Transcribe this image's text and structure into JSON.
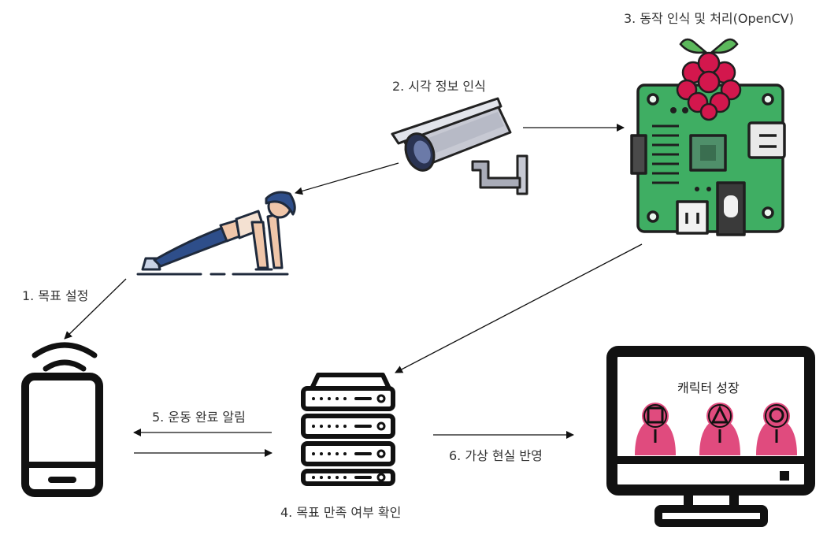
{
  "labels": {
    "step1": "1. 목표 설정",
    "step2": "2. 시각 정보 인식",
    "step3": "3. 동작 인식 및 처리(OpenCV)",
    "step4": "4. 목표 만족 여부 확인",
    "step5": "5. 운동 완료 알림",
    "step6": "6. 가상 현실 반영",
    "monitor_caption": "캐릭터 성장"
  },
  "icons": {
    "person": "pushup-person-icon",
    "camera": "cctv-camera-icon",
    "board": "raspberry-pi-board-icon",
    "phone": "smartphone-wifi-icon",
    "server": "server-rack-icon",
    "monitor": "monitor-icon",
    "characters": [
      "square-guard-icon",
      "triangle-guard-icon",
      "circle-guard-icon"
    ]
  },
  "colors": {
    "text": "#333333",
    "arrow": "#111111",
    "pcb_green": "#3fae63",
    "raspberry_red": "#d3174d",
    "leaf_green": "#5cb85c",
    "guard_pink": "#e04b7e",
    "pants_blue": "#2e4e8a",
    "camera_gray": "#c7c9d3"
  }
}
